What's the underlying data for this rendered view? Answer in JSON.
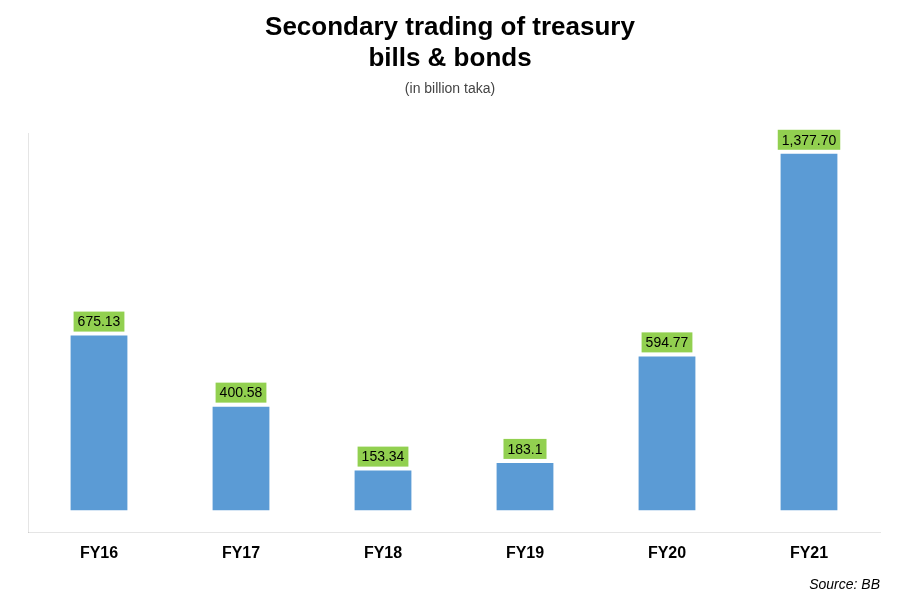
{
  "chart_data": {
    "type": "bar",
    "title": "Secondary trading of treasury\nbills & bonds",
    "subtitle": "(in billion taka)",
    "annotations": [
      "Source: BB"
    ],
    "categories": [
      "FY16",
      "FY17",
      "FY18",
      "FY19",
      "FY20",
      "FY21"
    ],
    "values": [
      675.13,
      400.58,
      153.34,
      183.1,
      594.77,
      1377.7
    ],
    "value_labels": [
      "675.13",
      "400.58",
      "153.34",
      "183.1",
      "594.77",
      "1,377.70"
    ],
    "data_labels": true,
    "color": "#5B9BD5",
    "ylim": [
      -87,
      1457.25
    ],
    "tick_labels": "x",
    "grid": false
  }
}
